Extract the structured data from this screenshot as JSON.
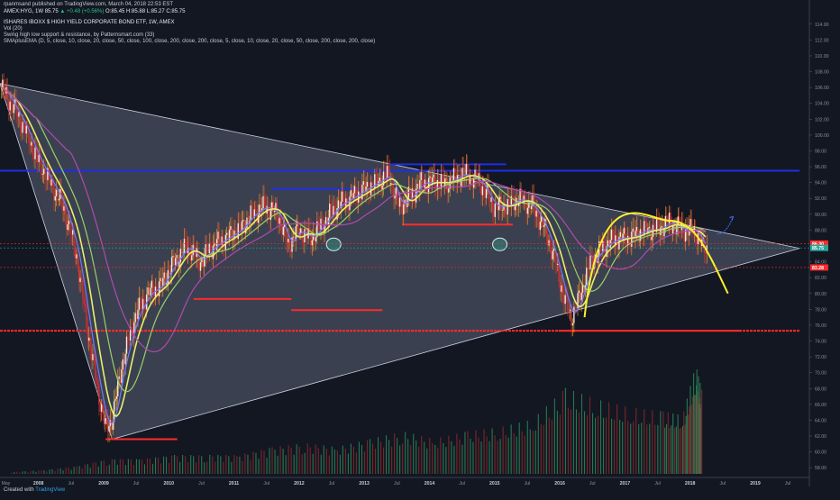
{
  "header": {
    "publisher_line": "rpanmsand published on TradingView.com, March 04, 2018 22:53 EST",
    "symbol": "AMEX:HYG, 1W",
    "last": "85.75",
    "change": "▲ +0.48 (+0.56%)",
    "ohlc": "O:85.45 H:85.88 L:85.27 C:85.75",
    "title": "ISHARES IBOXX $ HIGH YIELD CORPORATE BOND ETF, 1W, AMEX",
    "indicators": [
      "Vol (20)",
      "Swing high low support & resistance, by Patternsmart.com (33)",
      "SMAplusEMA (D, 5, close, 10, close, 20, close, 50, close, 100, close, 200, close, 200, close, 5, close, 10, close, 20, close, 50, close, 200, close, 200, close)"
    ]
  },
  "footer": {
    "created_with": "Created with",
    "brand": "TradingView"
  },
  "colors": {
    "background": "#131722",
    "up": "#26a69a",
    "down": "#ef5350",
    "candle_up": "#f0a030",
    "candle_down": "#d03030",
    "sma_fast": "#6e7cff",
    "sma_mid": "#e8f06a",
    "sma_slow": "#9ad06a",
    "sma_long": "#b04ab0",
    "resistance": "#1e2ee8",
    "support": "#ff2a2a",
    "triangle_fill": "#c8d8f0",
    "arc": "#ffef2a",
    "pivot_circle": "#2ab79a"
  },
  "chart_data": {
    "type": "line",
    "xlabel": "",
    "ylabel": "",
    "x_axis_ticks": [
      "May",
      "2008",
      "Jul",
      "2009",
      "Jul",
      "2010",
      "Jul",
      "2011",
      "Jul",
      "2012",
      "Jul",
      "2013",
      "Jul",
      "2014",
      "Jul",
      "2015",
      "Jul",
      "2016",
      "Jul",
      "2017",
      "Jul",
      "2018",
      "Jul",
      "2019",
      "Jul"
    ],
    "y_axis_ticks": [
      "114.00",
      "112.00",
      "110.00",
      "108.00",
      "106.00",
      "104.00",
      "102.00",
      "100.00",
      "98.00",
      "96.00",
      "94.00",
      "92.00",
      "90.00",
      "88.00",
      "86.00",
      "84.00",
      "82.00",
      "80.00",
      "78.00",
      "76.00",
      "74.00",
      "72.00",
      "70.00",
      "68.00",
      "66.00",
      "64.00",
      "62.00",
      "60.00",
      "58.00"
    ],
    "ylim": [
      57,
      115
    ],
    "xlim": [
      2007.33,
      2019.75
    ],
    "price_labels": [
      {
        "text": "86.30",
        "value": 86.3,
        "color": "#ff2a2a"
      },
      {
        "text": "85.75",
        "value": 85.75,
        "color": "#26a69a"
      },
      {
        "text": "83.28",
        "value": 83.28,
        "color": "#ff2a2a"
      }
    ],
    "series": [
      {
        "name": "HYG",
        "x": [
          2007.35,
          2007.5,
          2007.7,
          2007.9,
          2008.1,
          2008.3,
          2008.5,
          2008.7,
          2008.85,
          2008.95,
          2009.05,
          2009.2,
          2009.4,
          2009.6,
          2009.8,
          2010.0,
          2010.2,
          2010.4,
          2010.6,
          2010.8,
          2011.0,
          2011.2,
          2011.4,
          2011.6,
          2011.75,
          2011.9,
          2012.1,
          2012.3,
          2012.5,
          2012.7,
          2012.9,
          2013.1,
          2013.3,
          2013.45,
          2013.6,
          2013.8,
          2014.0,
          2014.2,
          2014.4,
          2014.5,
          2014.7,
          2014.9,
          2015.1,
          2015.3,
          2015.5,
          2015.7,
          2015.85,
          2016.0,
          2016.1,
          2016.2,
          2016.4,
          2016.6,
          2016.8,
          2017.0,
          2017.2,
          2017.4,
          2017.6,
          2017.8,
          2018.0,
          2018.1,
          2018.17
        ],
        "y": [
          106,
          104,
          101,
          97,
          94,
          91,
          85,
          74,
          67,
          63,
          64,
          71,
          77,
          80,
          81,
          84,
          86,
          84,
          86,
          87,
          88,
          90,
          91,
          90,
          86,
          88,
          87,
          89,
          91,
          92,
          93,
          94,
          95,
          91,
          92,
          94,
          94,
          94,
          95,
          95,
          94,
          91,
          91,
          92,
          91,
          88,
          84,
          79,
          77,
          79,
          84,
          86,
          87,
          87,
          88,
          88,
          89,
          88,
          88,
          86,
          85.75
        ]
      }
    ],
    "volume": {
      "x": [
        2007.5,
        2008.0,
        2008.5,
        2009.0,
        2009.5,
        2010.0,
        2010.5,
        2011.0,
        2011.5,
        2012.0,
        2012.5,
        2013.0,
        2013.5,
        2014.0,
        2014.5,
        2015.0,
        2015.5,
        2016.0,
        2016.5,
        2017.0,
        2017.5,
        2017.8,
        2018.0,
        2018.1
      ],
      "y": [
        0.5,
        1,
        2,
        4,
        4,
        5,
        5,
        5,
        7,
        8,
        7,
        9,
        11,
        9,
        11,
        12,
        14,
        22,
        19,
        17,
        16,
        15,
        28,
        21
      ]
    },
    "annotations": {
      "resistance_lines": [
        {
          "x0": 2007.33,
          "x1": 2019.6,
          "y": 95.5
        },
        {
          "x0": 2011.5,
          "x1": 2012.9,
          "y": 93.2
        },
        {
          "x0": 2013.3,
          "x1": 2015.1,
          "y": 96.3
        }
      ],
      "support_lines": [
        {
          "x0": 2007.33,
          "x1": 2019.6,
          "y": 75.3
        },
        {
          "x0": 2008.95,
          "x1": 2010.05,
          "y": 61.6
        },
        {
          "x0": 2010.3,
          "x1": 2011.8,
          "y": 79.3
        },
        {
          "x0": 2011.8,
          "x1": 2013.2,
          "y": 77.9
        },
        {
          "x0": 2013.5,
          "x1": 2015.2,
          "y": 88.7
        },
        {
          "x0": 2015.9,
          "x1": 2018.7,
          "y": 75.3
        }
      ],
      "triangle": [
        {
          "x": 2007.33,
          "y": 106.5
        },
        {
          "x": 2019.6,
          "y": 85.7
        },
        {
          "x": 2009.05,
          "y": 61.6
        }
      ],
      "arc": {
        "x0": 2016.3,
        "x1": 2018.5,
        "peak_x": 2017.6,
        "peak_y": 89.2,
        "y0": 77,
        "y1": 80
      },
      "pivots": [
        {
          "x": 2012.45,
          "y": 86.2
        },
        {
          "x": 2015.0,
          "y": 86.2
        }
      ],
      "projection_arrow": {
        "x0": 2018.33,
        "y0": 87.5,
        "x1": 2018.58,
        "y1": 89.7
      }
    }
  }
}
